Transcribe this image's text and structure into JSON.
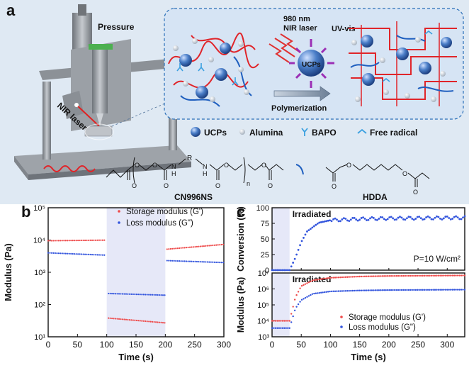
{
  "panel_labels": {
    "a": "a",
    "b": "b",
    "c": "c"
  },
  "panel_a": {
    "printer_labels": {
      "pressure": "Pressure",
      "nir_laser": "NIR laser"
    },
    "mechanism": {
      "laser": "980 nm",
      "laser_line2": "NIR laser",
      "uv": "UV-vis",
      "particle": "UCPs",
      "arrow": "Polymerization"
    },
    "legend": [
      {
        "name": "UCPs",
        "icon": "blue-sphere-icon"
      },
      {
        "name": "Alumina",
        "icon": "white-sphere-icon"
      },
      {
        "name": "BAPO",
        "icon": "y-shape-icon"
      },
      {
        "name": "Free radical",
        "icon": "hook-icon"
      }
    ],
    "monomers": {
      "cn996ns_label": "CN996NS",
      "hdda_label": "HDDA",
      "atoms": {
        "o": "O",
        "n": "N",
        "h": "H",
        "r": "R",
        "sub_n": "n"
      }
    },
    "colors": {
      "oligomer": "#e0252a",
      "hdda": "#1f5fbf",
      "ucp": "#4a7ec8",
      "frame": "#2a6fb8"
    }
  },
  "chart_data": [
    {
      "type": "scatter",
      "id": "b",
      "xlabel": "Time (s)",
      "ylabel": "Modulus (Pa)",
      "xlim": [
        0,
        300
      ],
      "xticks": [
        0,
        50,
        100,
        150,
        200,
        250,
        300
      ],
      "ylim_log": [
        1,
        5
      ],
      "yticks": [
        "10¹",
        "10²",
        "10³",
        "10⁴",
        "10⁵"
      ],
      "shaded_region": [
        100,
        200
      ],
      "legend_position": "top-right",
      "series": [
        {
          "name": "Storage modulus (G')",
          "color": "#ee4a4a",
          "segments": [
            {
              "x_start": 0,
              "x_end": 97,
              "y_start": 9500,
              "y_end": 9900
            },
            {
              "x_start": 103,
              "x_end": 200,
              "y_start": 38,
              "y_end": 27
            },
            {
              "x_start": 203,
              "x_end": 300,
              "y_start": 5200,
              "y_end": 7300
            }
          ]
        },
        {
          "name": "Loss modulus (G\")",
          "color": "#3355dd",
          "segments": [
            {
              "x_start": 0,
              "x_end": 97,
              "y_start": 4000,
              "y_end": 3400
            },
            {
              "x_start": 103,
              "x_end": 200,
              "y_start": 220,
              "y_end": 195
            },
            {
              "x_start": 203,
              "x_end": 300,
              "y_start": 2300,
              "y_end": 2000
            }
          ]
        }
      ]
    },
    {
      "type": "scatter",
      "id": "c-top",
      "xlim": [
        0,
        330
      ],
      "ylim": [
        0,
        100
      ],
      "yticks": [
        0,
        25,
        50,
        75,
        100
      ],
      "ylabel": "Conversion (%)",
      "annotation": "Irradiated",
      "condition": "P=10 W/cm²",
      "shaded_region": [
        0,
        30
      ],
      "series": [
        {
          "name": "Conversion",
          "color": "#3355dd",
          "points_description": "0 until 30 s, rising to ~80% by 100 s, plateau ~83%",
          "x_key": [
            0,
            30,
            40,
            50,
            60,
            80,
            100,
            150,
            200,
            330
          ],
          "y_key": [
            0,
            0,
            20,
            45,
            62,
            76,
            80,
            82,
            83,
            84
          ]
        }
      ]
    },
    {
      "type": "scatter",
      "id": "c-bottom",
      "xlabel": "Time (s)",
      "ylabel": "Modulus (Pa)",
      "xlim": [
        0,
        330
      ],
      "xticks": [
        0,
        50,
        100,
        150,
        200,
        250,
        300
      ],
      "ylim_log": [
        3,
        7
      ],
      "yticks": [
        "10³",
        "10⁴",
        "10⁵",
        "10⁶",
        "10⁷"
      ],
      "annotation": "Irradiated",
      "shaded_region": [
        0,
        30
      ],
      "legend_position": "bottom-right",
      "series": [
        {
          "name": "Storage modulus (G')",
          "color": "#ee4a4a",
          "x_key": [
            0,
            30,
            40,
            50,
            70,
            100,
            150,
            200,
            330
          ],
          "y_key": [
            10000,
            10000,
            300000,
            1500000,
            3500000,
            5000000,
            6000000,
            6500000,
            7000000
          ]
        },
        {
          "name": "Loss modulus (G\")",
          "color": "#3355dd",
          "x_key": [
            0,
            30,
            40,
            50,
            70,
            100,
            150,
            200,
            330
          ],
          "y_key": [
            3500,
            3500,
            60000,
            200000,
            500000,
            700000,
            800000,
            850000,
            900000
          ]
        }
      ]
    }
  ]
}
